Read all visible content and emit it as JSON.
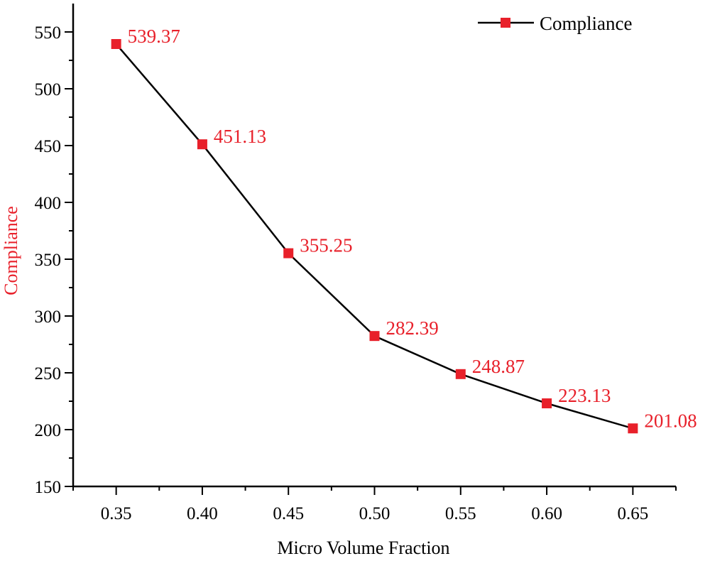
{
  "chart_data": {
    "type": "line",
    "title": "",
    "xlabel": "Micro Volume Fraction",
    "ylabel": "Compliance",
    "x": [
      0.35,
      0.4,
      0.45,
      0.5,
      0.55,
      0.6,
      0.65
    ],
    "x_tick_labels": [
      "0.35",
      "0.40",
      "0.45",
      "0.50",
      "0.55",
      "0.60",
      "0.65"
    ],
    "xlim": [
      0.325,
      0.675
    ],
    "ylim": [
      150,
      575
    ],
    "y_ticks": [
      150,
      200,
      250,
      300,
      350,
      400,
      450,
      500,
      550
    ],
    "y_tick_labels": [
      "150",
      "200",
      "250",
      "300",
      "350",
      "400",
      "450",
      "500",
      "550"
    ],
    "series": [
      {
        "name": "Compliance",
        "values": [
          539.37,
          451.13,
          355.25,
          282.39,
          248.87,
          223.13,
          201.08
        ],
        "data_labels": [
          "539.37",
          "451.13",
          "355.25",
          "282.39",
          "248.87",
          "223.13",
          "201.08"
        ],
        "line_color": "#000000",
        "marker": "square",
        "marker_color": "#e8202a"
      }
    ],
    "legend": {
      "placement": "top-right",
      "entries": [
        "Compliance"
      ]
    },
    "grid": false,
    "colors": {
      "accent": "#e8202a",
      "axis": "#000000",
      "ylabel": "#e8202a",
      "data_label": "#e8202a"
    }
  }
}
